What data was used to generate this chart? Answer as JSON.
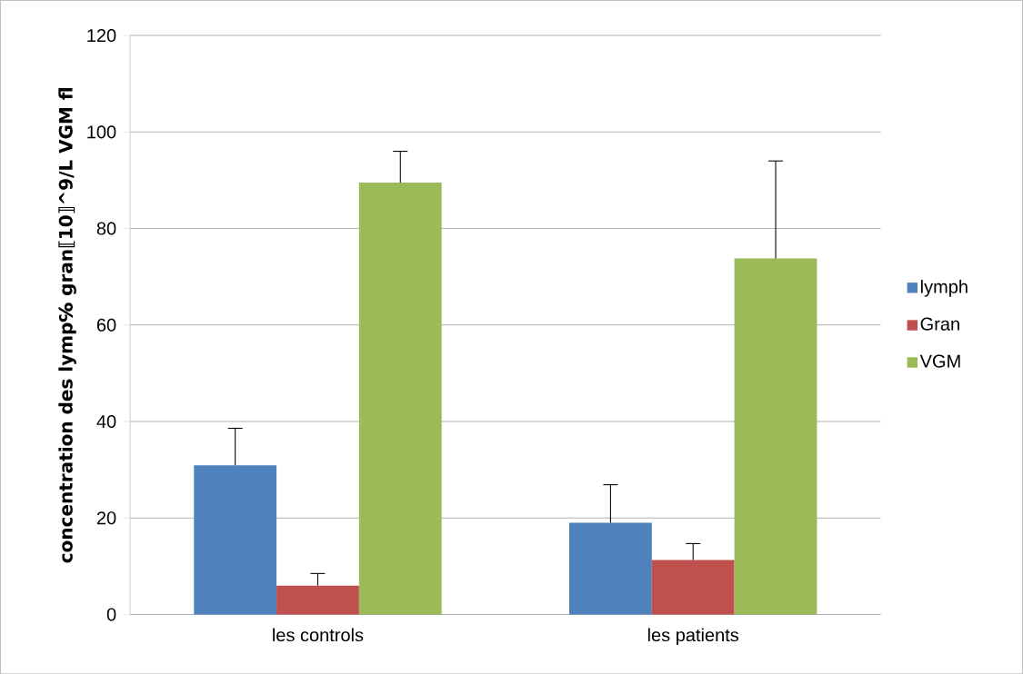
{
  "chart_data": {
    "type": "bar",
    "ylabel": "concentration des lymp℅ gran⟦10⟧^9/L VGM fl",
    "categories": [
      "les controls",
      "les patients"
    ],
    "series": [
      {
        "name": "lymph",
        "color": "#4f81bd",
        "values": [
          30.9,
          19.0
        ],
        "errors": [
          7.7,
          7.9
        ]
      },
      {
        "name": "Gran",
        "color": "#c0504d",
        "values": [
          6.0,
          11.3
        ],
        "errors": [
          2.5,
          3.4
        ]
      },
      {
        "name": "VGM",
        "color": "#9bbb59",
        "values": [
          89.5,
          73.8
        ],
        "errors": [
          6.5,
          20.2
        ]
      }
    ],
    "ylim": [
      0,
      120
    ],
    "yticks": [
      0,
      20,
      40,
      60,
      80,
      100,
      120
    ],
    "grid": "y",
    "legend": "right"
  }
}
